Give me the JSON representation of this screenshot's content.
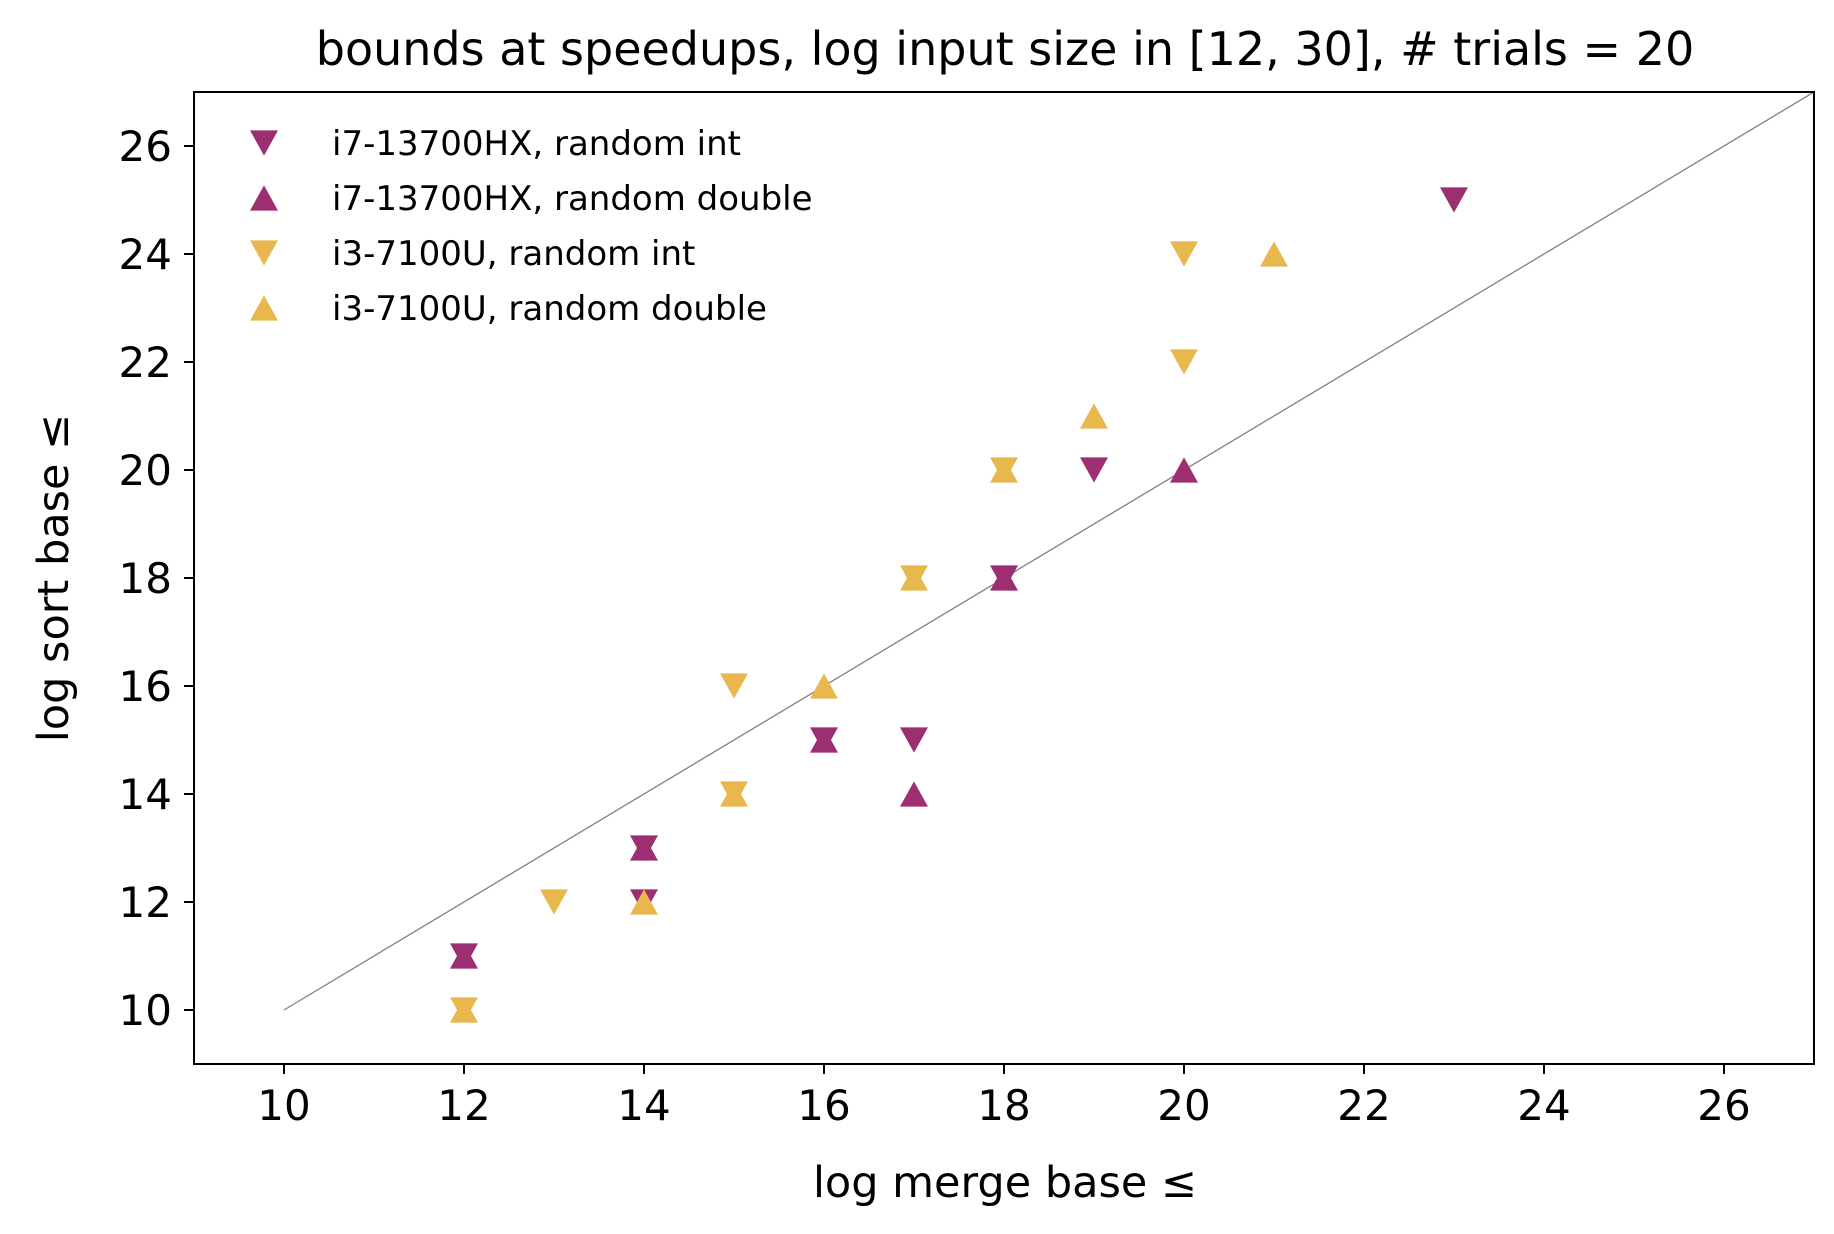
{
  "chart_data": {
    "type": "scatter",
    "title": "bounds at speedups, log input size in [12, 30], # trials = 20",
    "xlabel": "log merge base ≤",
    "ylabel": "log sort base ≤",
    "xlim": [
      9,
      27
    ],
    "ylim": [
      9,
      27
    ],
    "xticks": [
      10,
      12,
      14,
      16,
      18,
      20,
      22,
      24,
      26
    ],
    "yticks": [
      10,
      12,
      14,
      16,
      18,
      20,
      22,
      24,
      26
    ],
    "grid": false,
    "legend_position": "top-left",
    "reference_line": {
      "slope": 1,
      "intercept": 0,
      "color": "#808080"
    },
    "series": [
      {
        "name": "i7-13700HX, random int",
        "marker": "triangle-down",
        "color": "#9b2f72",
        "points": [
          [
            12,
            11
          ],
          [
            14,
            13
          ],
          [
            14,
            12
          ],
          [
            16,
            15
          ],
          [
            17,
            15
          ],
          [
            18,
            18
          ],
          [
            19,
            20
          ],
          [
            23,
            25
          ]
        ]
      },
      {
        "name": "i7-13700HX, random double",
        "marker": "triangle-up",
        "color": "#9b2f72",
        "points": [
          [
            12,
            11
          ],
          [
            14,
            13
          ],
          [
            16,
            15
          ],
          [
            17,
            14
          ],
          [
            18,
            18
          ],
          [
            20,
            20
          ]
        ]
      },
      {
        "name": "i3-7100U, random int",
        "marker": "triangle-down",
        "color": "#e8b84f",
        "points": [
          [
            12,
            10
          ],
          [
            13,
            12
          ],
          [
            15,
            16
          ],
          [
            15,
            14
          ],
          [
            17,
            18
          ],
          [
            18,
            20
          ],
          [
            20,
            24
          ],
          [
            20,
            22
          ]
        ]
      },
      {
        "name": "i3-7100U, random double",
        "marker": "triangle-up",
        "color": "#e8b84f",
        "points": [
          [
            12,
            10
          ],
          [
            14,
            12
          ],
          [
            15,
            14
          ],
          [
            16,
            16
          ],
          [
            17,
            18
          ],
          [
            18,
            20
          ],
          [
            19,
            21
          ],
          [
            21,
            24
          ]
        ]
      }
    ]
  }
}
